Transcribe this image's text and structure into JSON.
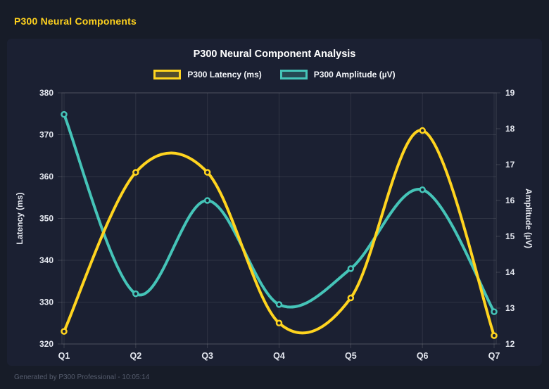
{
  "page": {
    "header_title": "P300 Neural Components",
    "footer_text": "Generated by P300 Professional - 10:05:14"
  },
  "colors": {
    "page_bg": "#171c28",
    "panel_bg": "#1b2032",
    "grid_line": "rgba(255,255,255,0.09)",
    "plot_border": "rgba(255,255,255,0.14)",
    "tick_text": "#e4e7ef",
    "axis_title_text": "#e4e7ef",
    "chart_title_text": "#ffffff",
    "header_text": "#ffd21e",
    "footer_text": "#565d6e",
    "latency_series": "#ffd41f",
    "amplitude_series": "#45c4b8"
  },
  "chart_data": {
    "type": "line",
    "title": "P300 Neural Component Analysis",
    "categories": [
      "Q1",
      "Q2",
      "Q3",
      "Q4",
      "Q5",
      "Q6",
      "Q7"
    ],
    "series": [
      {
        "name": "P300 Latency (ms)",
        "axis": "left",
        "color": "#ffd41f",
        "values": [
          323,
          361,
          361,
          325,
          331,
          371,
          322
        ]
      },
      {
        "name": "P300 Amplitude (µV)",
        "axis": "right",
        "color": "#45c4b8",
        "values": [
          18.4,
          13.4,
          16.0,
          13.1,
          14.1,
          16.3,
          12.9
        ]
      }
    ],
    "left_axis": {
      "label": "Latency (ms)",
      "min": 320,
      "max": 380,
      "tick_step": 10,
      "ticks": [
        320,
        330,
        340,
        350,
        360,
        370,
        380
      ]
    },
    "right_axis": {
      "label": "Amplitude (µV)",
      "min": 12,
      "max": 19,
      "tick_step": 1,
      "ticks": [
        12,
        13,
        14,
        15,
        16,
        17,
        18,
        19
      ]
    },
    "legend_position": "top",
    "grid": true,
    "curve": "smooth"
  }
}
